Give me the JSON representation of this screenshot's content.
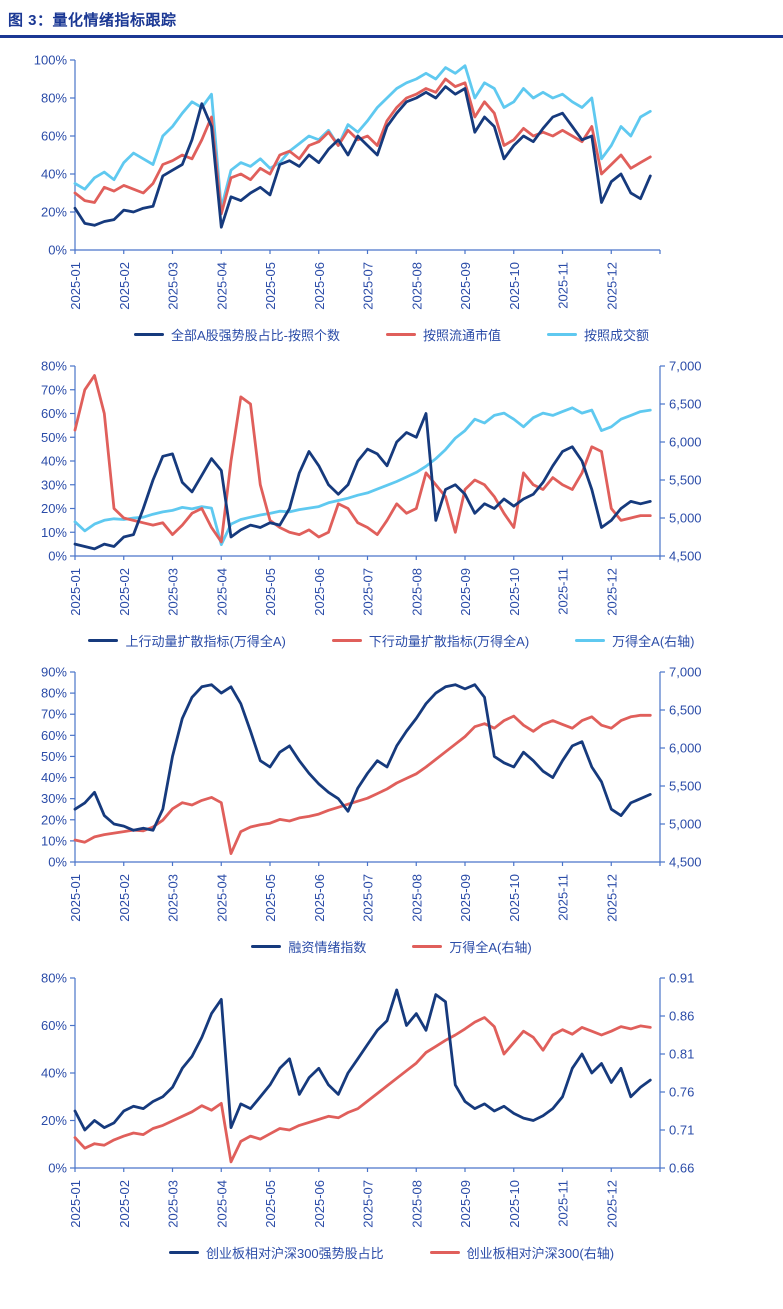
{
  "page_title": "图 3：量化情绪指标跟踪",
  "colors": {
    "navy": "#163A7D",
    "red": "#E05F5B",
    "sky": "#5FC9F0",
    "axis": "#4A74C9",
    "tick_label": "#2B4CA8",
    "title": "#1B3894"
  },
  "chart_data": [
    {
      "type": "line",
      "x_tick_labels": [
        "2025-01",
        "2025-02",
        "2025-03",
        "2025-04",
        "2025-05",
        "2025-06",
        "2025-07",
        "2025-08",
        "2025-09",
        "2025-10",
        "2025-11",
        "2025-12"
      ],
      "x_label_rotation": -90,
      "left_axis": {
        "min": 0,
        "max": 100,
        "step": 20,
        "format": "percent"
      },
      "right_axis": null,
      "legend_position": "bottom",
      "series": [
        {
          "name": "全部A股强势股占比-按照个数",
          "color_key": "navy",
          "axis": "left",
          "values": [
            22,
            14,
            13,
            15,
            16,
            21,
            20,
            22,
            23,
            39,
            42,
            45,
            58,
            77,
            65,
            12,
            28,
            26,
            30,
            33,
            29,
            45,
            47,
            44,
            50,
            46,
            53,
            58,
            50,
            60,
            55,
            50,
            65,
            72,
            78,
            80,
            83,
            80,
            86,
            82,
            85,
            62,
            70,
            65,
            48,
            55,
            60,
            57,
            64,
            70,
            72,
            65,
            58,
            60,
            25,
            36,
            40,
            30,
            27,
            39
          ]
        },
        {
          "name": "按照流通市值",
          "color_key": "red",
          "axis": "left",
          "values": [
            30,
            26,
            25,
            33,
            31,
            34,
            32,
            30,
            35,
            45,
            47,
            50,
            48,
            58,
            70,
            19,
            38,
            40,
            37,
            43,
            40,
            50,
            52,
            48,
            55,
            57,
            62,
            55,
            63,
            58,
            60,
            55,
            68,
            75,
            80,
            82,
            85,
            83,
            90,
            86,
            88,
            70,
            78,
            72,
            55,
            58,
            64,
            60,
            62,
            60,
            63,
            60,
            57,
            65,
            40,
            45,
            50,
            43,
            46,
            49
          ]
        },
        {
          "name": "按照成交额",
          "color_key": "sky",
          "axis": "left",
          "values": [
            35,
            32,
            38,
            41,
            37,
            46,
            51,
            48,
            45,
            60,
            65,
            72,
            78,
            75,
            82,
            22,
            42,
            46,
            44,
            48,
            43,
            46,
            52,
            56,
            60,
            58,
            63,
            55,
            66,
            62,
            68,
            75,
            80,
            85,
            88,
            90,
            93,
            90,
            96,
            93,
            97,
            80,
            88,
            85,
            75,
            78,
            85,
            80,
            83,
            80,
            82,
            78,
            75,
            80,
            48,
            55,
            65,
            60,
            70,
            73
          ]
        }
      ]
    },
    {
      "type": "line",
      "x_tick_labels": [
        "2025-01",
        "2025-02",
        "2025-03",
        "2025-04",
        "2025-05",
        "2025-06",
        "2025-07",
        "2025-08",
        "2025-09",
        "2025-10",
        "2025-11",
        "2025-12"
      ],
      "x_label_rotation": -90,
      "left_axis": {
        "min": 0,
        "max": 80,
        "step": 10,
        "format": "percent"
      },
      "right_axis": {
        "min": 4500,
        "max": 7000,
        "step": 500,
        "format": "thousands"
      },
      "legend_position": "bottom",
      "series": [
        {
          "name": "上行动量扩散指标(万得全A)",
          "color_key": "navy",
          "axis": "left",
          "values": [
            5,
            4,
            3,
            5,
            4,
            8,
            9,
            20,
            32,
            42,
            43,
            31,
            27,
            34,
            41,
            36,
            8,
            11,
            13,
            12,
            14,
            13,
            20,
            35,
            44,
            38,
            30,
            26,
            30,
            40,
            45,
            43,
            38,
            48,
            52,
            50,
            60,
            15,
            28,
            30,
            26,
            18,
            22,
            20,
            24,
            21,
            24,
            26,
            31,
            38,
            44,
            46,
            40,
            28,
            12,
            15,
            20,
            23,
            22,
            23
          ]
        },
        {
          "name": "下行动量扩散指标(万得全A)",
          "color_key": "red",
          "axis": "left",
          "values": [
            53,
            70,
            76,
            60,
            20,
            16,
            15,
            14,
            13,
            14,
            9,
            13,
            18,
            20,
            12,
            6,
            40,
            67,
            64,
            30,
            15,
            12,
            10,
            9,
            11,
            8,
            10,
            22,
            20,
            14,
            12,
            9,
            15,
            22,
            18,
            20,
            35,
            30,
            25,
            10,
            28,
            32,
            30,
            25,
            18,
            12,
            35,
            30,
            28,
            33,
            30,
            28,
            35,
            46,
            44,
            20,
            15,
            16,
            17,
            17
          ]
        },
        {
          "name": "万得全A(右轴)",
          "color_key": "sky",
          "axis": "right",
          "values": [
            4950,
            4830,
            4920,
            4970,
            4990,
            4980,
            5000,
            5010,
            5050,
            5080,
            5100,
            5140,
            5120,
            5150,
            5130,
            4650,
            4920,
            4980,
            5010,
            5040,
            5060,
            5090,
            5080,
            5110,
            5130,
            5150,
            5200,
            5230,
            5260,
            5300,
            5330,
            5380,
            5430,
            5480,
            5540,
            5600,
            5680,
            5780,
            5900,
            6050,
            6150,
            6300,
            6250,
            6350,
            6380,
            6300,
            6200,
            6320,
            6380,
            6350,
            6400,
            6450,
            6380,
            6420,
            6150,
            6200,
            6300,
            6350,
            6400,
            6420
          ]
        }
      ]
    },
    {
      "type": "line",
      "x_tick_labels": [
        "2025-01",
        "2025-02",
        "2025-03",
        "2025-04",
        "2025-05",
        "2025-06",
        "2025-07",
        "2025-08",
        "2025-09",
        "2025-10",
        "2025-11",
        "2025-12"
      ],
      "x_label_rotation": -90,
      "left_axis": {
        "min": 0,
        "max": 90,
        "step": 10,
        "format": "percent"
      },
      "right_axis": {
        "min": 4500,
        "max": 7000,
        "step": 500,
        "format": "thousands"
      },
      "legend_position": "bottom",
      "series": [
        {
          "name": "融资情绪指数",
          "color_key": "navy",
          "axis": "left",
          "values": [
            25,
            28,
            33,
            22,
            18,
            17,
            15,
            16,
            15,
            25,
            50,
            68,
            78,
            83,
            84,
            80,
            83,
            75,
            62,
            48,
            45,
            52,
            55,
            48,
            42,
            37,
            33,
            30,
            24,
            35,
            42,
            48,
            45,
            55,
            62,
            68,
            75,
            80,
            83,
            84,
            82,
            84,
            78,
            50,
            47,
            45,
            52,
            48,
            43,
            40,
            48,
            55,
            57,
            45,
            38,
            25,
            22,
            28,
            30,
            32
          ]
        },
        {
          "name": "万得全A(右轴)",
          "color_key": "red",
          "axis": "right",
          "values": [
            4790,
            4760,
            4830,
            4860,
            4880,
            4900,
            4920,
            4910,
            4960,
            5050,
            5200,
            5280,
            5250,
            5310,
            5350,
            5280,
            4610,
            4900,
            4960,
            4990,
            5010,
            5060,
            5040,
            5080,
            5100,
            5130,
            5180,
            5220,
            5260,
            5300,
            5340,
            5400,
            5460,
            5540,
            5600,
            5660,
            5750,
            5850,
            5950,
            6050,
            6150,
            6280,
            6320,
            6260,
            6360,
            6420,
            6300,
            6220,
            6310,
            6360,
            6310,
            6260,
            6360,
            6410,
            6300,
            6260,
            6360,
            6410,
            6430,
            6430
          ]
        }
      ]
    },
    {
      "type": "line",
      "x_tick_labels": [
        "2025-01",
        "2025-02",
        "2025-03",
        "2025-04",
        "2025-05",
        "2025-06",
        "2025-07",
        "2025-08",
        "2025-09",
        "2025-10",
        "2025-11",
        "2025-12"
      ],
      "x_label_rotation": -90,
      "left_axis": {
        "min": 0,
        "max": 80,
        "step": 20,
        "format": "percent"
      },
      "right_axis": {
        "min": 0.66,
        "max": 0.91,
        "step": 0.05,
        "format": "decimal2"
      },
      "legend_position": "bottom",
      "series": [
        {
          "name": "创业板相对沪深300强势股占比",
          "color_key": "navy",
          "axis": "left",
          "values": [
            24,
            16,
            20,
            17,
            19,
            24,
            26,
            25,
            28,
            30,
            34,
            42,
            47,
            55,
            65,
            71,
            17,
            27,
            25,
            30,
            35,
            42,
            46,
            31,
            38,
            42,
            35,
            31,
            40,
            46,
            52,
            58,
            62,
            75,
            60,
            65,
            58,
            73,
            70,
            35,
            28,
            25,
            27,
            24,
            26,
            23,
            21,
            20,
            22,
            25,
            30,
            42,
            48,
            40,
            44,
            36,
            42,
            30,
            34,
            37
          ]
        },
        {
          "name": "创业板相对沪深300(右轴)",
          "color_key": "red",
          "axis": "right",
          "values": [
            0.7,
            0.686,
            0.692,
            0.69,
            0.697,
            0.702,
            0.706,
            0.704,
            0.712,
            0.716,
            0.722,
            0.728,
            0.734,
            0.742,
            0.736,
            0.745,
            0.668,
            0.695,
            0.702,
            0.698,
            0.705,
            0.712,
            0.71,
            0.716,
            0.72,
            0.724,
            0.728,
            0.726,
            0.733,
            0.738,
            0.748,
            0.758,
            0.768,
            0.778,
            0.788,
            0.798,
            0.812,
            0.82,
            0.828,
            0.835,
            0.843,
            0.852,
            0.858,
            0.846,
            0.81,
            0.825,
            0.84,
            0.832,
            0.815,
            0.835,
            0.842,
            0.836,
            0.845,
            0.84,
            0.835,
            0.84,
            0.846,
            0.843,
            0.847,
            0.845
          ]
        }
      ]
    }
  ]
}
